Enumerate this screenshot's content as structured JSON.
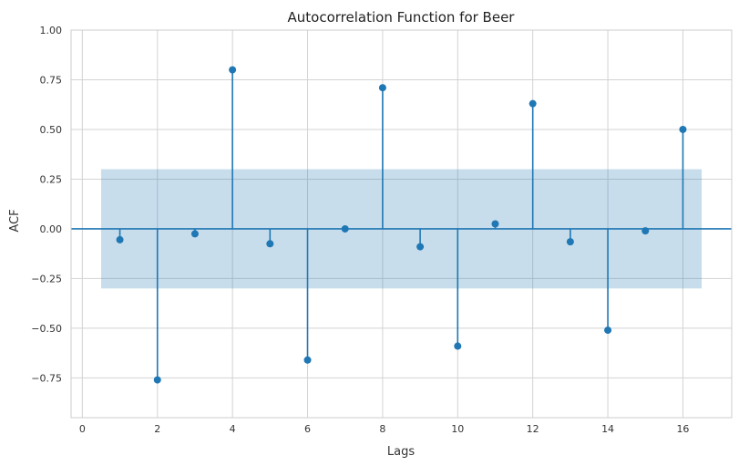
{
  "chart_data": {
    "type": "stem",
    "title": "Autocorrelation Function for Beer",
    "xlabel": "Lags",
    "ylabel": "ACF",
    "xlim": [
      -0.3,
      17.3
    ],
    "ylim": [
      -0.95,
      1.0
    ],
    "xticks": [
      0,
      2,
      4,
      6,
      8,
      10,
      12,
      14,
      16
    ],
    "xtick_labels": [
      "0",
      "2",
      "4",
      "6",
      "8",
      "10",
      "12",
      "14",
      "16"
    ],
    "yticks": [
      1.0,
      0.75,
      0.5,
      0.25,
      0.0,
      -0.25,
      -0.5,
      -0.75
    ],
    "ytick_labels": [
      "1.00",
      "0.75",
      "0.50",
      "0.25",
      "0.00",
      "−0.25",
      "−0.50",
      "−0.75"
    ],
    "lags": [
      1,
      2,
      3,
      4,
      5,
      6,
      7,
      8,
      9,
      10,
      11,
      12,
      13,
      14,
      15,
      16
    ],
    "acf": [
      -0.055,
      -0.76,
      -0.025,
      0.8,
      -0.075,
      -0.66,
      0.0,
      0.71,
      -0.09,
      -0.59,
      0.025,
      0.63,
      -0.065,
      -0.51,
      -0.01,
      0.5
    ],
    "confidence_band": {
      "x_range": [
        0.5,
        16.5
      ],
      "upper": 0.3,
      "lower": -0.3,
      "color": "#1f77b4",
      "opacity": 0.25
    },
    "grid": true,
    "colors": {
      "stem": "#1f77b4",
      "marker": "#1f77b4",
      "zero_line": "#1f77b4",
      "grid": "#d3d3d3",
      "spine": "#cccccc"
    }
  }
}
